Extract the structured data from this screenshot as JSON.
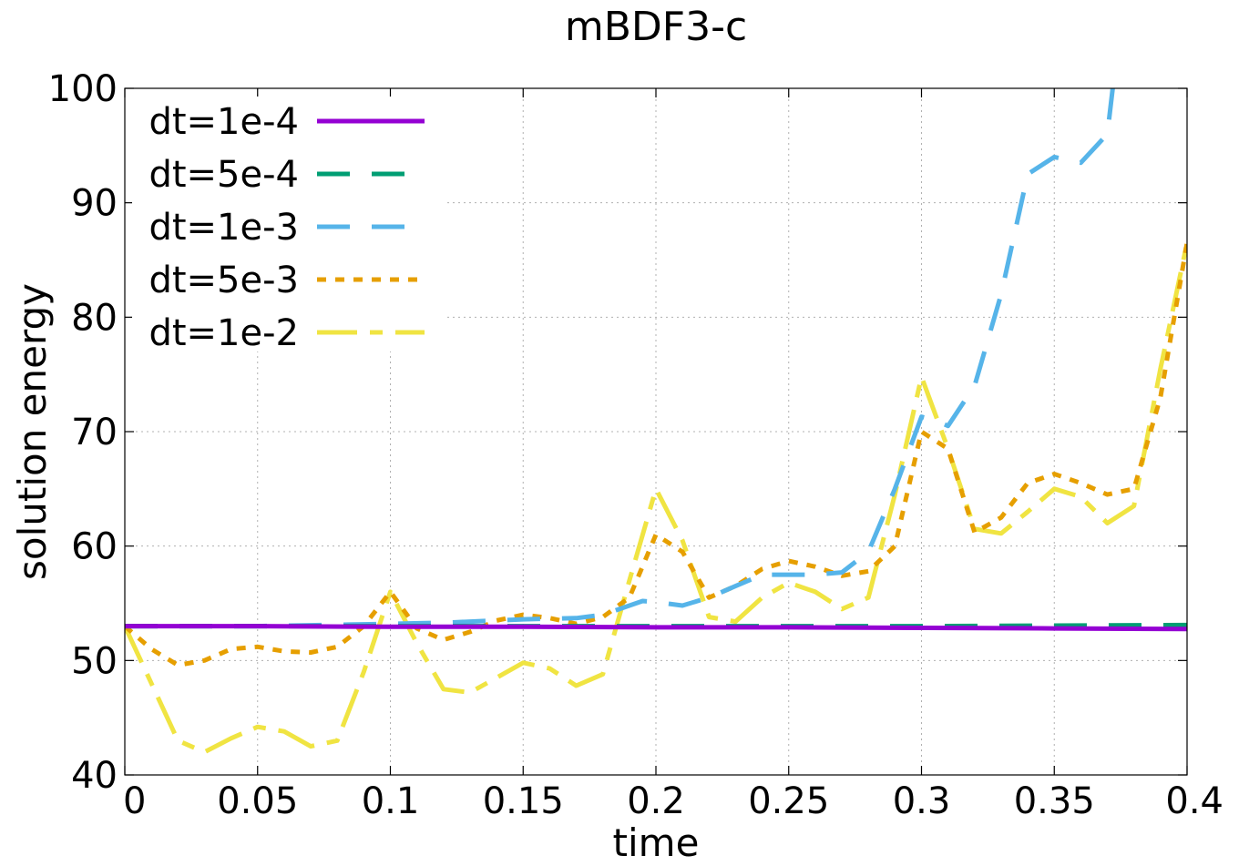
{
  "chart_data": {
    "type": "line",
    "title": "mBDF3-c",
    "xlabel": "time",
    "ylabel": "solution energy",
    "xlim": [
      0,
      0.4
    ],
    "ylim": [
      40,
      100
    ],
    "xticks": [
      0,
      0.05,
      0.1,
      0.15,
      0.2,
      0.25,
      0.3,
      0.35,
      0.4
    ],
    "xtick_labels": [
      "0",
      "0.05",
      "0.1",
      "0.15",
      "0.2",
      "0.25",
      "0.3",
      "0.35",
      "0.4"
    ],
    "yticks": [
      40,
      50,
      60,
      70,
      80,
      90,
      100
    ],
    "ytick_labels": [
      "40",
      "50",
      "60",
      "70",
      "80",
      "90",
      "100"
    ],
    "grid": true,
    "legend_position": "top-left",
    "series": [
      {
        "name": "dt=1e-4",
        "color": "#9400d3",
        "dash": "solid",
        "x": [
          0,
          0.05,
          0.1,
          0.15,
          0.2,
          0.25,
          0.3,
          0.35,
          0.4
        ],
        "y": [
          53.0,
          53.0,
          52.95,
          52.95,
          52.9,
          52.9,
          52.85,
          52.8,
          52.75
        ]
      },
      {
        "name": "dt=5e-4",
        "color": "#009e73",
        "dash": "long-dash",
        "x": [
          0,
          0.05,
          0.1,
          0.15,
          0.2,
          0.25,
          0.3,
          0.35,
          0.4
        ],
        "y": [
          53.0,
          53.0,
          53.0,
          53.0,
          53.0,
          53.0,
          53.0,
          53.05,
          53.1
        ]
      },
      {
        "name": "dt=1e-3",
        "color": "#56b4e9",
        "dash": "long-dash",
        "x": [
          0,
          0.05,
          0.1,
          0.12,
          0.15,
          0.17,
          0.18,
          0.19,
          0.195,
          0.2,
          0.21,
          0.22,
          0.23,
          0.24,
          0.25,
          0.26,
          0.27,
          0.28,
          0.29,
          0.3,
          0.305,
          0.31,
          0.32,
          0.33,
          0.34,
          0.35,
          0.36,
          0.37,
          0.372
        ],
        "y": [
          53.0,
          53.0,
          53.2,
          53.3,
          53.6,
          53.7,
          54.0,
          54.8,
          55.2,
          55.1,
          54.8,
          55.5,
          56.5,
          57.5,
          57.5,
          57.5,
          57.7,
          59.5,
          65.0,
          71.3,
          71.0,
          70.5,
          74.0,
          82.0,
          92.5,
          94.0,
          93.5,
          96.0,
          100.0
        ]
      },
      {
        "name": "dt=5e-3",
        "color": "#e69f00",
        "dash": "dotted",
        "x": [
          0,
          0.01,
          0.02,
          0.03,
          0.04,
          0.05,
          0.06,
          0.07,
          0.08,
          0.09,
          0.1,
          0.11,
          0.12,
          0.13,
          0.14,
          0.15,
          0.16,
          0.17,
          0.18,
          0.19,
          0.2,
          0.21,
          0.22,
          0.23,
          0.24,
          0.25,
          0.26,
          0.27,
          0.28,
          0.29,
          0.3,
          0.31,
          0.32,
          0.33,
          0.34,
          0.35,
          0.36,
          0.37,
          0.38,
          0.39,
          0.4
        ],
        "y": [
          53.0,
          51.0,
          49.6,
          50.0,
          51.0,
          51.2,
          50.8,
          50.7,
          51.2,
          53.0,
          56.0,
          52.8,
          51.8,
          52.5,
          53.5,
          54.0,
          53.7,
          53.2,
          53.8,
          55.5,
          61.0,
          59.5,
          55.5,
          56.5,
          58.0,
          58.7,
          58.2,
          57.4,
          57.8,
          60.0,
          70.0,
          68.5,
          61.2,
          62.5,
          65.5,
          66.3,
          65.5,
          64.5,
          65.0,
          73.0,
          86.5
        ]
      },
      {
        "name": "dt=1e-2",
        "color": "#f0e442",
        "dash": "dash-dot",
        "x": [
          0,
          0.01,
          0.02,
          0.03,
          0.04,
          0.05,
          0.06,
          0.07,
          0.08,
          0.09,
          0.1,
          0.11,
          0.12,
          0.13,
          0.14,
          0.15,
          0.16,
          0.17,
          0.18,
          0.19,
          0.2,
          0.21,
          0.22,
          0.23,
          0.24,
          0.25,
          0.26,
          0.27,
          0.28,
          0.29,
          0.3,
          0.31,
          0.32,
          0.33,
          0.34,
          0.35,
          0.36,
          0.37,
          0.38,
          0.39,
          0.4
        ],
        "y": [
          53.0,
          48.0,
          43.0,
          42.0,
          43.2,
          44.2,
          43.8,
          42.5,
          43.0,
          49.0,
          56.0,
          51.5,
          47.5,
          47.2,
          48.5,
          49.8,
          49.3,
          47.8,
          48.8,
          57.0,
          65.0,
          60.5,
          53.8,
          53.4,
          55.5,
          56.8,
          56.0,
          54.5,
          55.5,
          64.5,
          74.8,
          68.5,
          61.5,
          61.1,
          63.0,
          65.0,
          64.3,
          62.0,
          63.5,
          75.5,
          86.5
        ]
      }
    ]
  }
}
